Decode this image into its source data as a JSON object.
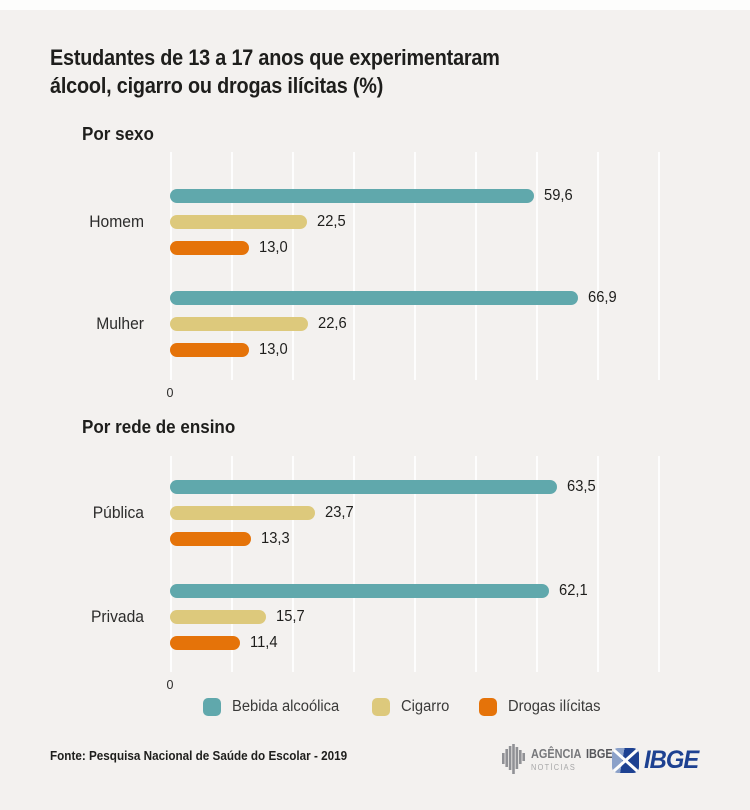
{
  "page": {
    "title_line1": "Estudantes de 13 a 17 anos que experimentaram",
    "title_line2": "álcool, cigarro ou drogas ilícitas (%)"
  },
  "colors": {
    "alcohol": "#60a8ac",
    "cigarette": "#ddc97c",
    "drugs": "#e57309",
    "background": "#f3f1ef",
    "gridline": "#fdfdfd",
    "text": "#1e1e1c",
    "ibge_blue": "#1d4191",
    "ibge_light_blue": "#8ba1c9",
    "agencia_gray": "#77787b"
  },
  "chart_data": {
    "type": "bar",
    "orientation": "horizontal",
    "unit": "%",
    "xlim": [
      0,
      80
    ],
    "gridline_interval": 10,
    "axis_zero_label": "0",
    "grid": true,
    "legend_position": "bottom",
    "series": [
      {
        "name": "Bebida alcoólica",
        "color_key": "alcohol"
      },
      {
        "name": "Cigarro",
        "color_key": "cigarette"
      },
      {
        "name": "Drogas ilícitas",
        "color_key": "drugs"
      }
    ],
    "sections": [
      {
        "title": "Por sexo",
        "groups": [
          {
            "label": "Homem",
            "values": [
              59.6,
              22.5,
              13.0
            ],
            "display": [
              "59,6",
              "22,5",
              "13,0"
            ]
          },
          {
            "label": "Mulher",
            "values": [
              66.9,
              22.6,
              13.0
            ],
            "display": [
              "66,9",
              "22,6",
              "13,0"
            ]
          }
        ]
      },
      {
        "title": "Por rede de ensino",
        "groups": [
          {
            "label": "Pública",
            "values": [
              63.5,
              23.7,
              13.3
            ],
            "display": [
              "63,5",
              "23,7",
              "13,3"
            ]
          },
          {
            "label": "Privada",
            "values": [
              62.1,
              15.7,
              11.4
            ],
            "display": [
              "62,1",
              "15,7",
              "11,4"
            ]
          }
        ]
      }
    ]
  },
  "footer": {
    "source": "Fonte: Pesquisa Nacional de Saúde do Escolar - 2019",
    "agencia_logo": {
      "word1": "AGÊNCIA",
      "word2": "IBGE",
      "line2": "NOTÍCIAS"
    },
    "ibge_logo_text": "IBGE"
  }
}
